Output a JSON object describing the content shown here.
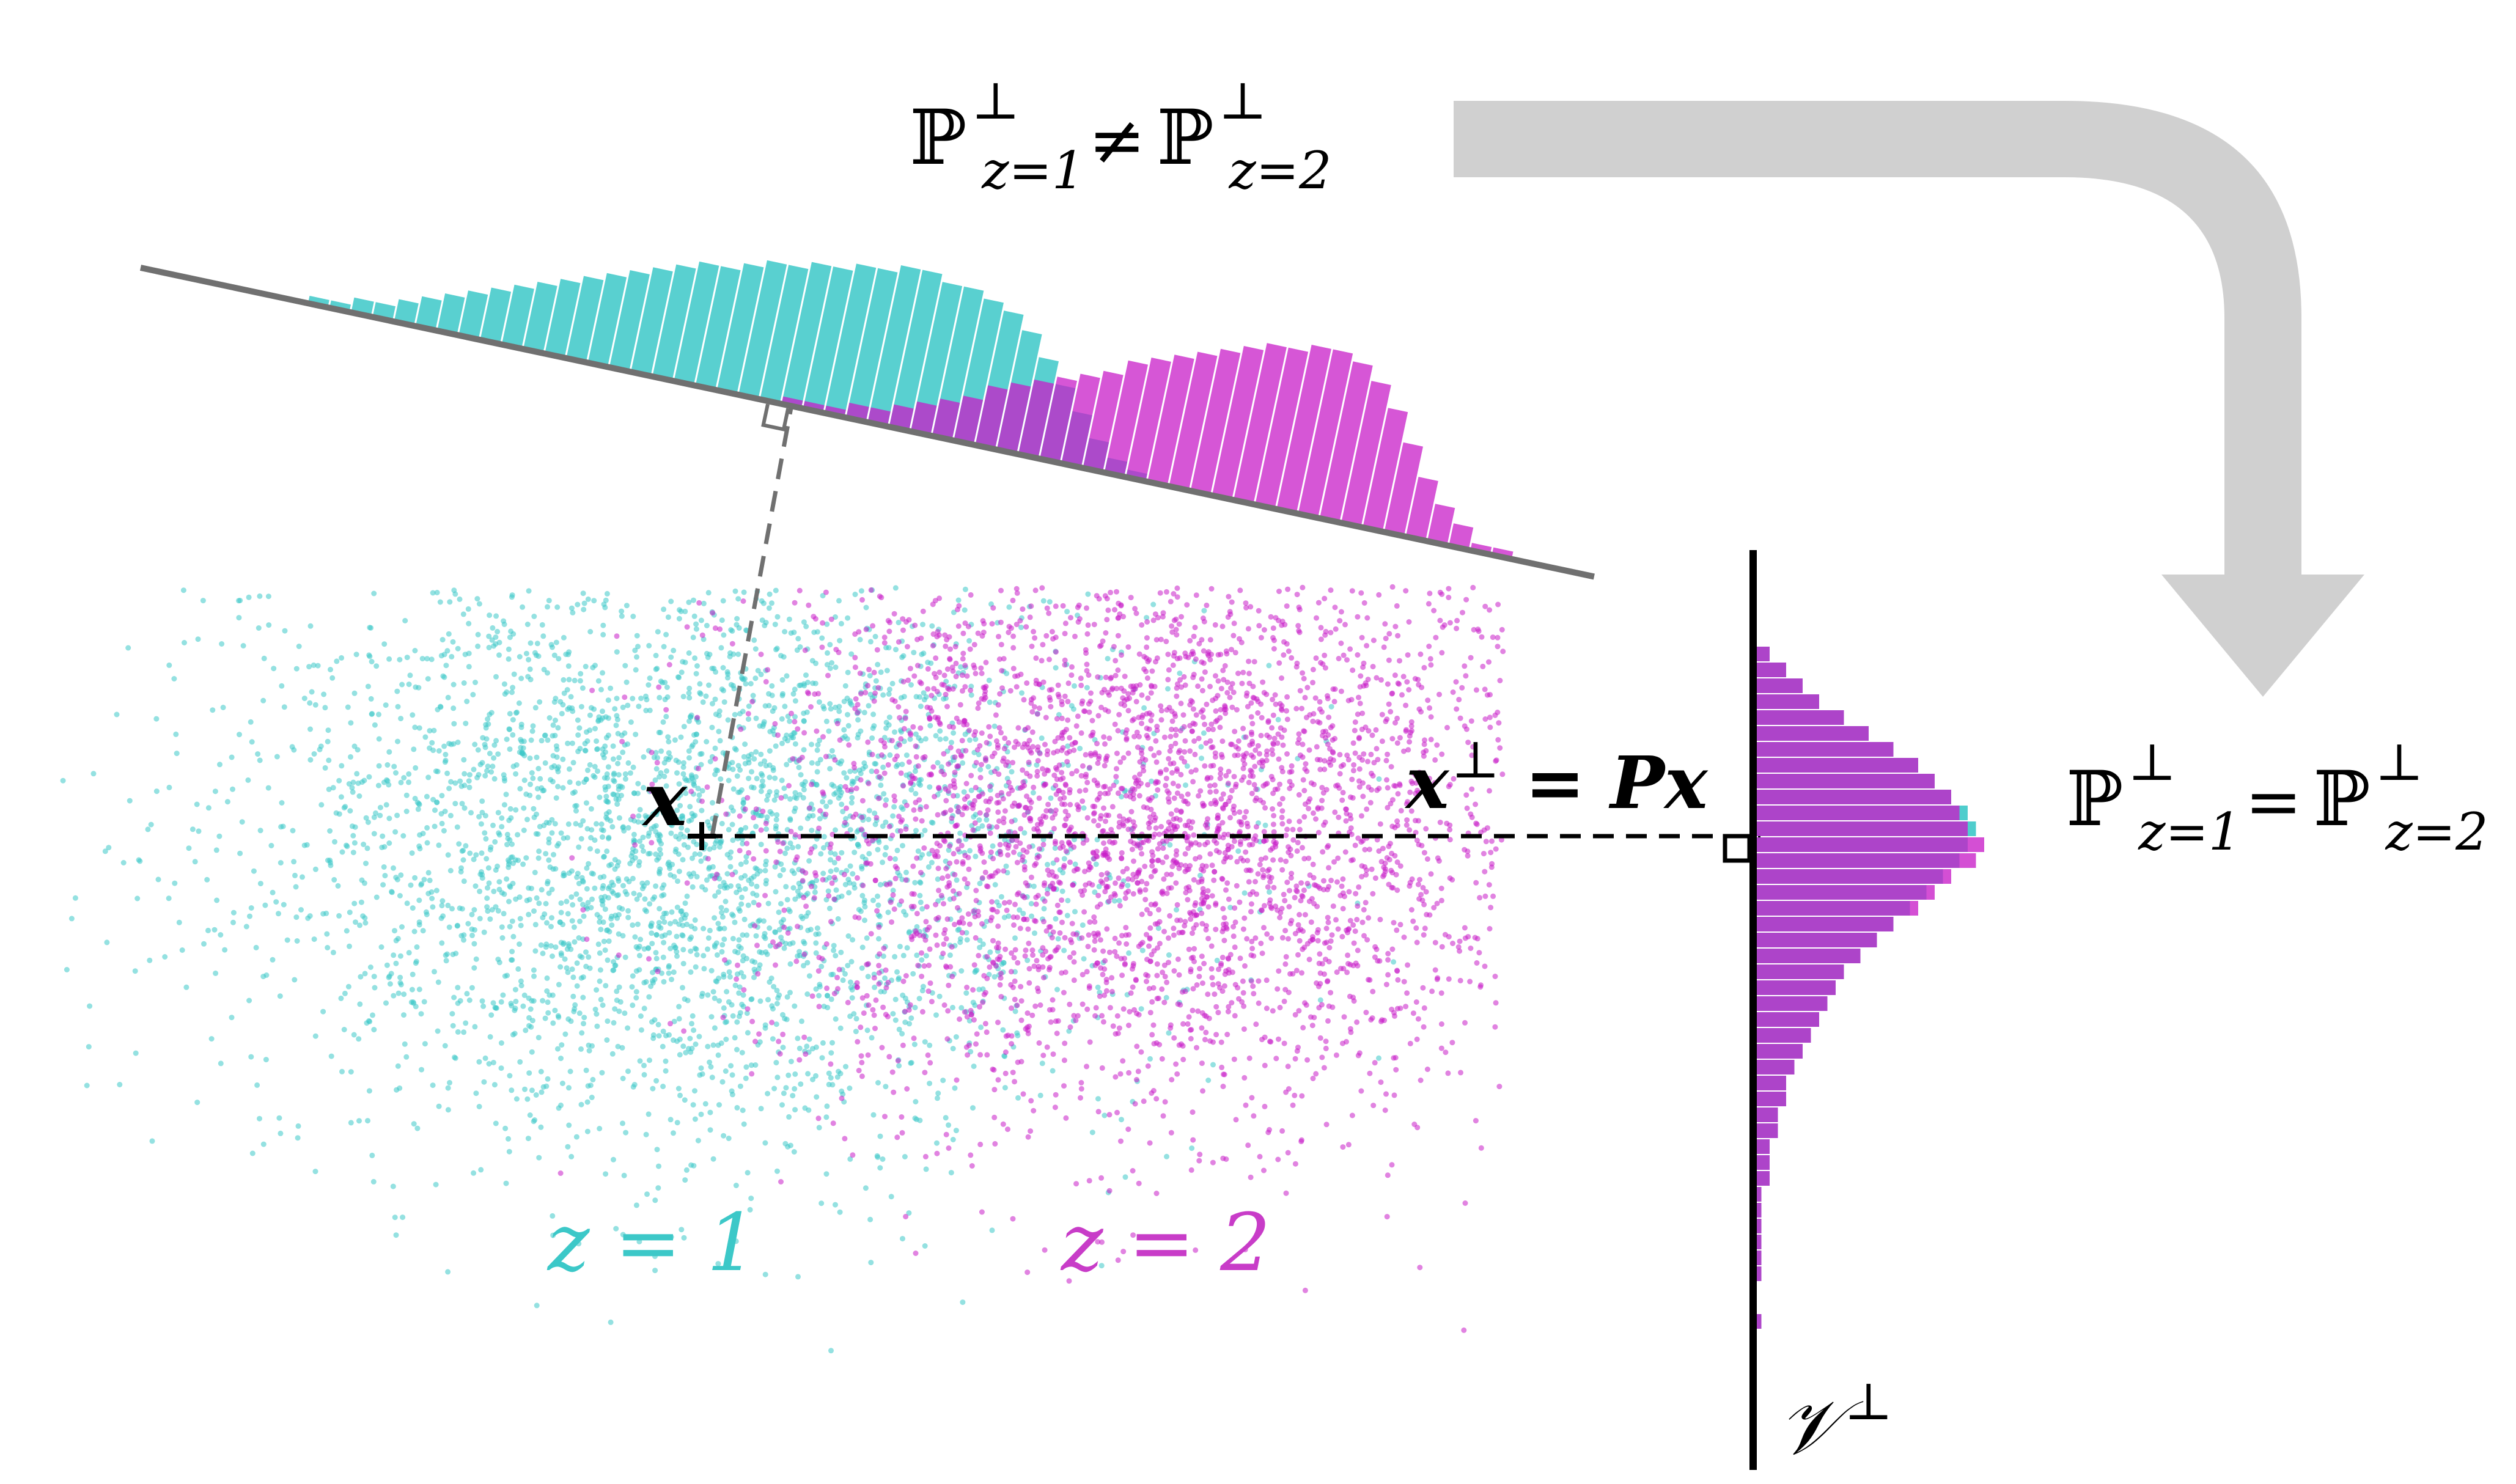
{
  "colors": {
    "cyan": "#3cc8c8",
    "magenta": "#c81ec8",
    "purple": "#7a3cc8",
    "arrow": "#d0d0d0",
    "axis_gray": "#707070",
    "black": "#000000"
  },
  "labels": {
    "top_blackboard": "ℙ",
    "top_perp1": "⊥",
    "top_sub1": "z=1",
    "top_neq": "≠",
    "top_perp2": "⊥",
    "top_sub2": "z=2",
    "right_blackboard": "ℙ",
    "right_perp1": "⊥",
    "right_sub1": "z=1",
    "right_eq": "=",
    "right_perp2": "⊥",
    "right_sub2": "z=2",
    "x_point": "x",
    "projection_lhs": "x",
    "projection_perp": "⊥",
    "projection_rhs": " = Px",
    "cluster1": "z = 1",
    "cluster2": "z = 2",
    "subspace_symbol": "𝒱",
    "subspace_perp": "⊥"
  },
  "icons": [
    "right-angle-icon",
    "curved-arrow-icon"
  ],
  "chart_data": {
    "type": "histogram",
    "projection_histogram_1": {
      "series": [
        {
          "name": "z = 1",
          "color": "cyan",
          "values": [
            1,
            1,
            2,
            2,
            3,
            4,
            5,
            6,
            7,
            8,
            9,
            10,
            11,
            12,
            13,
            14,
            15,
            16,
            16,
            17,
            18,
            18,
            19,
            19,
            20,
            20,
            21,
            21,
            20,
            20,
            19,
            18,
            16,
            13,
            10,
            7,
            4,
            2,
            1,
            0,
            0,
            0,
            0,
            0,
            0,
            0,
            0,
            0,
            0,
            0,
            0,
            0,
            0,
            0,
            0,
            0
          ]
        },
        {
          "name": "z = 2",
          "color": "magenta",
          "values": [
            0,
            0,
            0,
            0,
            0,
            0,
            0,
            0,
            0,
            0,
            0,
            0,
            0,
            0,
            0,
            0,
            0,
            0,
            0,
            0,
            0,
            0,
            1,
            1,
            1,
            2,
            2,
            3,
            4,
            5,
            6,
            8,
            9,
            10,
            11,
            12,
            13,
            15,
            16,
            17,
            18,
            19,
            20,
            21,
            21,
            22,
            22,
            21,
            19,
            16,
            12,
            8,
            5,
            3,
            1,
            1
          ]
        }
      ]
    },
    "projection_histogram_2": {
      "series": [
        {
          "name": "z = 1",
          "color": "cyan",
          "values": [
            2,
            4,
            6,
            8,
            11,
            14,
            17,
            20,
            22,
            24,
            26,
            27,
            26,
            25,
            23,
            21,
            19,
            17,
            15,
            13,
            11,
            10,
            9,
            8,
            7,
            6,
            5,
            4,
            4,
            3,
            3,
            2,
            2,
            2,
            1,
            1,
            1,
            1,
            1,
            1,
            0,
            0,
            1,
            0,
            0,
            0
          ]
        },
        {
          "name": "z = 2",
          "color": "magenta",
          "values": [
            2,
            4,
            6,
            8,
            11,
            14,
            17,
            20,
            22,
            24,
            25,
            26,
            28,
            27,
            24,
            22,
            20,
            17,
            15,
            13,
            11,
            10,
            9,
            8,
            7,
            6,
            5,
            4,
            4,
            3,
            3,
            2,
            2,
            2,
            1,
            1,
            1,
            1,
            1,
            1,
            0,
            0,
            1,
            0,
            0,
            0
          ]
        }
      ]
    }
  }
}
